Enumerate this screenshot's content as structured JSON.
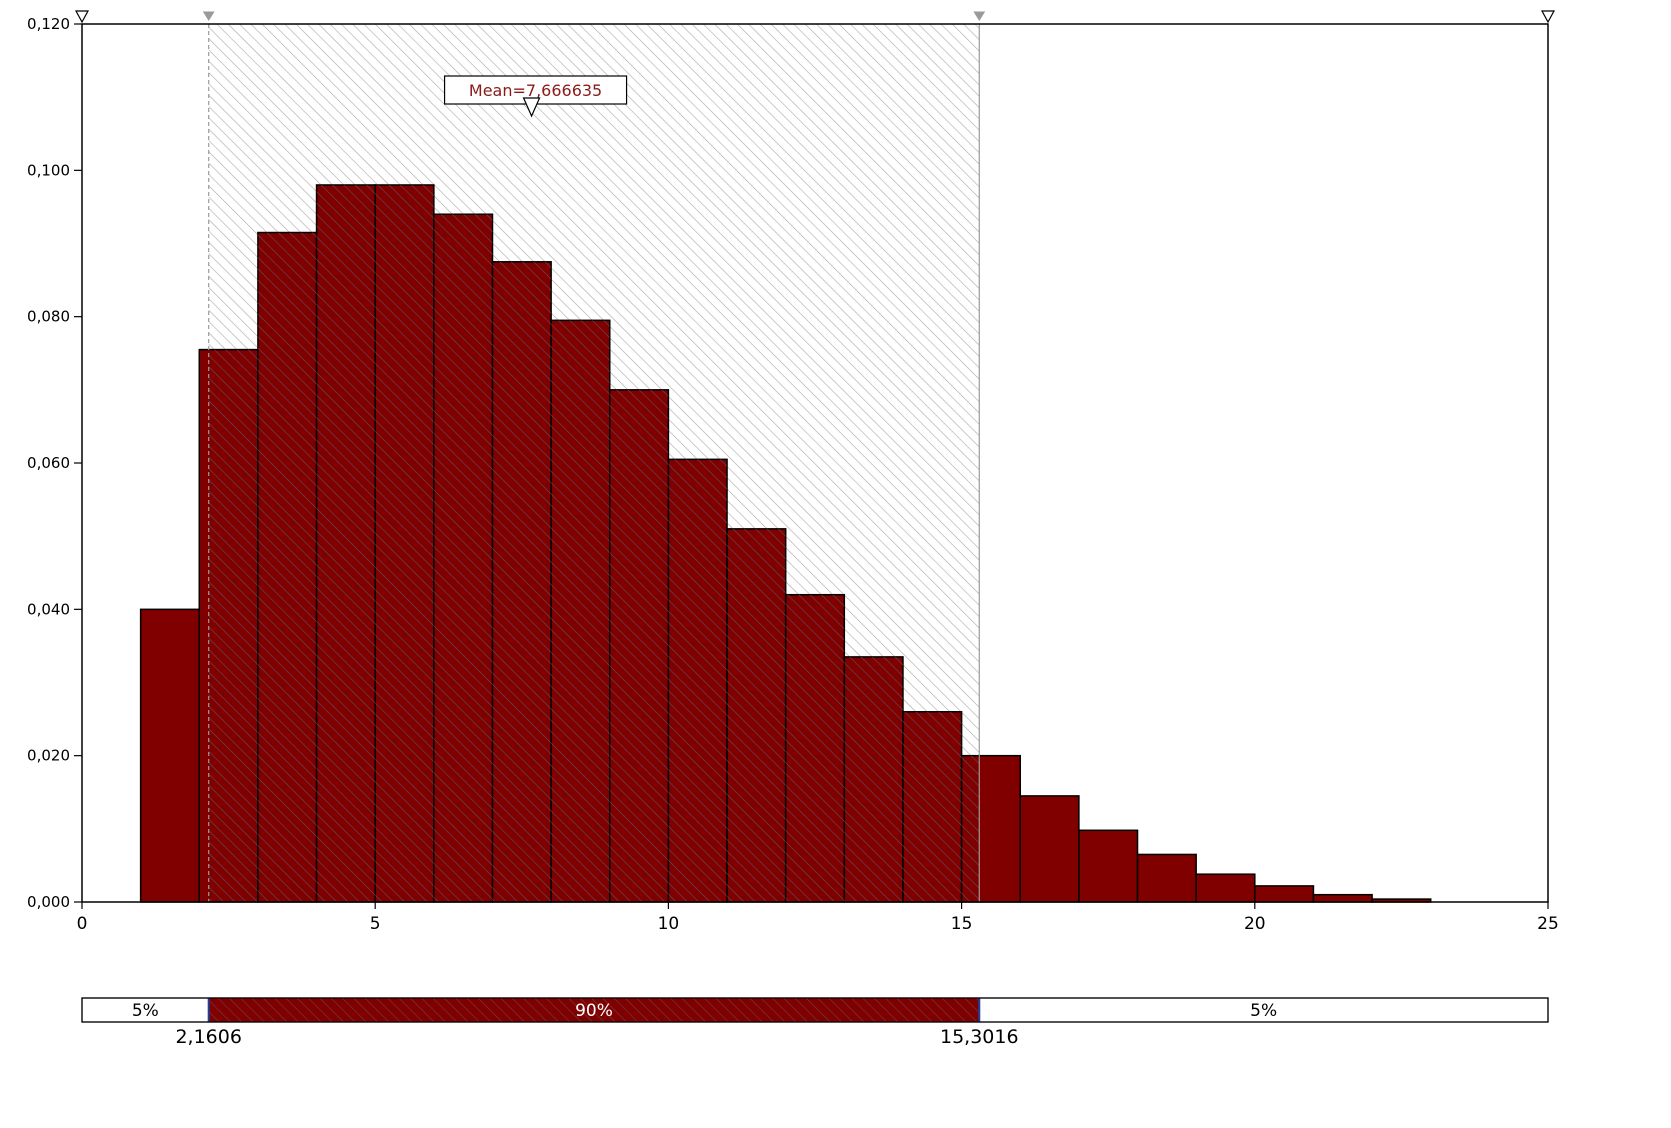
{
  "chart_data": {
    "type": "bar",
    "title": "",
    "xlabel": "",
    "ylabel": "",
    "xlim": [
      0,
      25
    ],
    "ylim": [
      0,
      0.12
    ],
    "x_ticks": [
      0,
      5,
      10,
      15,
      20,
      25
    ],
    "x_tick_labels": [
      "0",
      "5",
      "10",
      "15",
      "20",
      "25"
    ],
    "y_ticks": [
      0,
      0.02,
      0.04,
      0.06,
      0.08,
      0.1,
      0.12
    ],
    "y_tick_labels": [
      "0,000",
      "0,020",
      "0,040",
      "0,060",
      "0,080",
      "0,100",
      "0,120"
    ],
    "bin_width": 1,
    "bins": [
      {
        "x0": 1,
        "x1": 2,
        "value": 0.04
      },
      {
        "x0": 2,
        "x1": 3,
        "value": 0.0755
      },
      {
        "x0": 3,
        "x1": 4,
        "value": 0.0915
      },
      {
        "x0": 4,
        "x1": 5,
        "value": 0.098
      },
      {
        "x0": 5,
        "x1": 6,
        "value": 0.098
      },
      {
        "x0": 6,
        "x1": 7,
        "value": 0.094
      },
      {
        "x0": 7,
        "x1": 8,
        "value": 0.0875
      },
      {
        "x0": 8,
        "x1": 9,
        "value": 0.0795
      },
      {
        "x0": 9,
        "x1": 10,
        "value": 0.07
      },
      {
        "x0": 10,
        "x1": 11,
        "value": 0.0605
      },
      {
        "x0": 11,
        "x1": 12,
        "value": 0.051
      },
      {
        "x0": 12,
        "x1": 13,
        "value": 0.042
      },
      {
        "x0": 13,
        "x1": 14,
        "value": 0.0335
      },
      {
        "x0": 14,
        "x1": 15,
        "value": 0.026
      },
      {
        "x0": 15,
        "x1": 16,
        "value": 0.02
      },
      {
        "x0": 16,
        "x1": 17,
        "value": 0.0145
      },
      {
        "x0": 17,
        "x1": 18,
        "value": 0.0098
      },
      {
        "x0": 18,
        "x1": 19,
        "value": 0.0065
      },
      {
        "x0": 19,
        "x1": 20,
        "value": 0.0038
      },
      {
        "x0": 20,
        "x1": 21,
        "value": 0.0022
      },
      {
        "x0": 21,
        "x1": 22,
        "value": 0.001
      },
      {
        "x0": 22,
        "x1": 23,
        "value": 0.0004
      }
    ],
    "mean": {
      "value": 7.666635,
      "label": "Mean=7,666635"
    },
    "interval": {
      "lower": 2.1606,
      "upper": 15.3016,
      "lower_label": "2,1606",
      "upper_label": "15,3016",
      "left_pct": "5%",
      "mid_pct": "90%",
      "right_pct": "5%"
    },
    "colors": {
      "bar_fill": "#800000",
      "bar_stroke": "#000000",
      "hatch": "#a9a9a9",
      "mean_text": "#8b1a1a",
      "bound_line": "#1f3fa0"
    },
    "grid": false,
    "legend": "none"
  }
}
